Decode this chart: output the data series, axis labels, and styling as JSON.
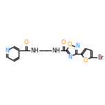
{
  "bg_color": "#ffffff",
  "bond_color": "#000000",
  "atom_colors": {
    "N": "#1e90ff",
    "O": "#ff8c00",
    "Br": "#8b0000",
    "C": "#000000"
  },
  "figsize": [
    1.52,
    1.52
  ],
  "dpi": 100
}
